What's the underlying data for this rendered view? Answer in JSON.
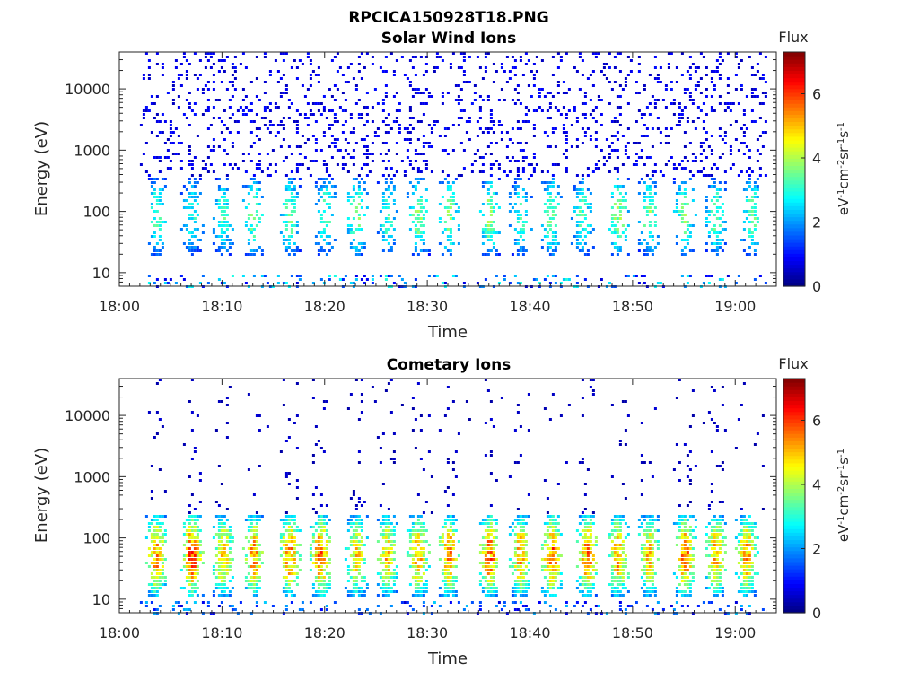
{
  "figure": {
    "title": "RPCICA150928T18.PNG"
  },
  "chart_data": [
    {
      "type": "heatmap",
      "title": "Solar Wind Ions",
      "xlabel": "Time",
      "ylabel": "Energy (eV)",
      "x_range": [
        "18:00",
        "19:04"
      ],
      "x_ticks": [
        "18:00",
        "18:10",
        "18:20",
        "18:30",
        "18:40",
        "18:50",
        "19:00"
      ],
      "y_scale": "log",
      "y_range": [
        6,
        40000
      ],
      "y_ticks": [
        "10",
        "100",
        "1000",
        "10000"
      ],
      "data_start": "18:02",
      "data_end": "19:03",
      "colorbar": {
        "title": "Flux",
        "label": "eV-1cm-2sr-1s-1",
        "range": [
          0,
          7.3
        ],
        "ticks": [
          "0",
          "2",
          "4",
          "6"
        ],
        "colormap": "jet"
      },
      "bursts": [
        {
          "time": "18:03.5",
          "flux": 3.3
        },
        {
          "time": "18:07",
          "flux": 3.0
        },
        {
          "time": "18:10",
          "flux": 3.2
        },
        {
          "time": "18:13",
          "flux": 3.6
        },
        {
          "time": "18:16.5",
          "flux": 3.5
        },
        {
          "time": "18:20",
          "flux": 3.4
        },
        {
          "time": "18:23",
          "flux": 3.6
        },
        {
          "time": "18:26",
          "flux": 3.2
        },
        {
          "time": "18:29",
          "flux": 3.8
        },
        {
          "time": "18:32",
          "flux": 3.7
        },
        {
          "time": "18:36",
          "flux": 3.8
        },
        {
          "time": "18:39",
          "flux": 3.2
        },
        {
          "time": "18:42",
          "flux": 3.6
        },
        {
          "time": "18:45",
          "flux": 3.3
        },
        {
          "time": "18:48.5",
          "flux": 3.9
        },
        {
          "time": "18:51.5",
          "flux": 3.6
        },
        {
          "time": "18:55",
          "flux": 3.6
        },
        {
          "time": "18:58",
          "flux": 3.4
        },
        {
          "time": "19:01.5",
          "flux": 3.5
        }
      ],
      "band_energy_eV": [
        20,
        400
      ],
      "background_flux": 0.8
    },
    {
      "type": "heatmap",
      "title": "Cometary Ions",
      "xlabel": "Time",
      "ylabel": "Energy (eV)",
      "x_range": [
        "18:00",
        "19:04"
      ],
      "x_ticks": [
        "18:00",
        "18:10",
        "18:20",
        "18:30",
        "18:40",
        "18:50",
        "19:00"
      ],
      "y_scale": "log",
      "y_range": [
        6,
        40000
      ],
      "y_ticks": [
        "10",
        "100",
        "1000",
        "10000"
      ],
      "data_start": "18:02",
      "data_end": "19:03",
      "colorbar": {
        "title": "Flux",
        "label": "eV-1cm-2sr-1s-1",
        "range": [
          0,
          7.3
        ],
        "ticks": [
          "0",
          "2",
          "4",
          "6"
        ],
        "colormap": "jet"
      },
      "bursts": [
        {
          "time": "18:03.5",
          "flux": 5.3
        },
        {
          "time": "18:07",
          "flux": 5.8
        },
        {
          "time": "18:10",
          "flux": 5.0
        },
        {
          "time": "18:13",
          "flux": 5.3
        },
        {
          "time": "18:16.5",
          "flux": 5.5
        },
        {
          "time": "18:19.5",
          "flux": 5.6
        },
        {
          "time": "18:23",
          "flux": 4.8
        },
        {
          "time": "18:26",
          "flux": 5.0
        },
        {
          "time": "18:29",
          "flux": 5.2
        },
        {
          "time": "18:32",
          "flux": 5.4
        },
        {
          "time": "18:36",
          "flux": 5.6
        },
        {
          "time": "18:39",
          "flux": 5.2
        },
        {
          "time": "18:42",
          "flux": 5.7
        },
        {
          "time": "18:45.5",
          "flux": 5.5
        },
        {
          "time": "18:48.5",
          "flux": 5.3
        },
        {
          "time": "18:51.5",
          "flux": 5.0
        },
        {
          "time": "18:55",
          "flux": 5.5
        },
        {
          "time": "18:58",
          "flux": 5.1
        },
        {
          "time": "19:01",
          "flux": 5.2
        }
      ],
      "band_energy_eV": [
        12,
        250
      ],
      "background_flux": 0.5
    }
  ]
}
